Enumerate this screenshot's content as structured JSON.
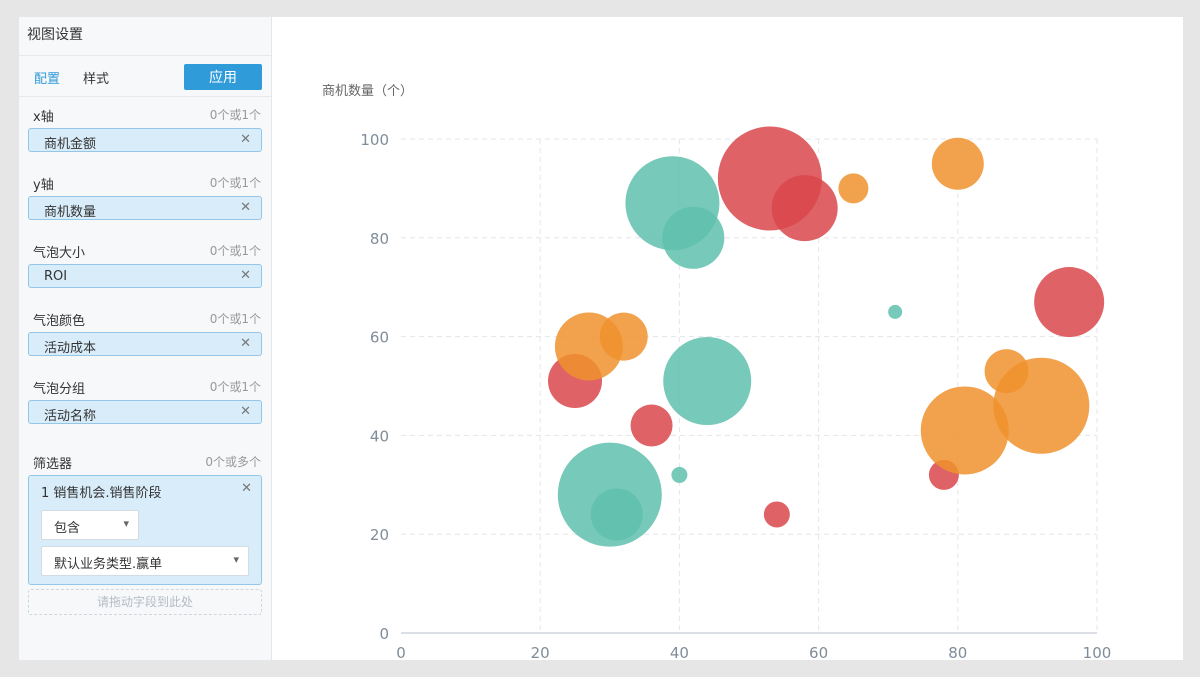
{
  "sidebar": {
    "title": "视图设置",
    "tabs": [
      {
        "label": "配置",
        "active": true
      },
      {
        "label": "样式",
        "active": false
      }
    ],
    "apply_label": "应用",
    "fields": [
      {
        "label": "x轴",
        "hint": "0个或1个",
        "value": "商机金额"
      },
      {
        "label": "y轴",
        "hint": "0个或1个",
        "value": "商机数量"
      },
      {
        "label": "气泡大小",
        "hint": "0个或1个",
        "value": "ROI"
      },
      {
        "label": "气泡颜色",
        "hint": "0个或1个",
        "value": "活动成本"
      },
      {
        "label": "气泡分组",
        "hint": "0个或1个",
        "value": "活动名称"
      }
    ],
    "filter": {
      "label": "筛选器",
      "hint": "0个或多个",
      "item_title": "1 销售机会.销售阶段",
      "operator": "包含",
      "value": "默认业务类型.赢单",
      "drop_placeholder": "请拖动字段到此处"
    }
  },
  "chart_data": {
    "type": "scatter",
    "ylabel": "商机数量（个）",
    "xlabel": "",
    "xlim": [
      0,
      100
    ],
    "ylim": [
      0,
      100
    ],
    "xticks": [
      0,
      20,
      40,
      60,
      80,
      100
    ],
    "yticks": [
      0,
      20,
      40,
      60,
      80,
      100
    ],
    "grid": true,
    "colors": {
      "teal": "#5fbfad",
      "red": "#d9474b",
      "orange": "#f0922d"
    },
    "points": [
      {
        "x": 39,
        "y": 87,
        "size": 47,
        "color": "teal"
      },
      {
        "x": 42,
        "y": 80,
        "size": 31,
        "color": "teal"
      },
      {
        "x": 44,
        "y": 51,
        "size": 44,
        "color": "teal"
      },
      {
        "x": 30,
        "y": 28,
        "size": 52,
        "color": "teal"
      },
      {
        "x": 31,
        "y": 24,
        "size": 26,
        "color": "teal"
      },
      {
        "x": 40,
        "y": 32,
        "size": 8,
        "color": "teal"
      },
      {
        "x": 71,
        "y": 65,
        "size": 7,
        "color": "teal"
      },
      {
        "x": 53,
        "y": 92,
        "size": 52,
        "color": "red"
      },
      {
        "x": 58,
        "y": 86,
        "size": 33,
        "color": "red"
      },
      {
        "x": 25,
        "y": 51,
        "size": 27,
        "color": "red"
      },
      {
        "x": 36,
        "y": 42,
        "size": 21,
        "color": "red"
      },
      {
        "x": 54,
        "y": 24,
        "size": 13,
        "color": "red"
      },
      {
        "x": 78,
        "y": 32,
        "size": 15,
        "color": "red"
      },
      {
        "x": 96,
        "y": 67,
        "size": 35,
        "color": "red"
      },
      {
        "x": 65,
        "y": 90,
        "size": 15,
        "color": "orange"
      },
      {
        "x": 80,
        "y": 95,
        "size": 26,
        "color": "orange"
      },
      {
        "x": 27,
        "y": 58,
        "size": 34,
        "color": "orange"
      },
      {
        "x": 32,
        "y": 60,
        "size": 24,
        "color": "orange"
      },
      {
        "x": 87,
        "y": 53,
        "size": 22,
        "color": "orange"
      },
      {
        "x": 92,
        "y": 46,
        "size": 48,
        "color": "orange"
      },
      {
        "x": 81,
        "y": 41,
        "size": 44,
        "color": "orange"
      }
    ]
  }
}
